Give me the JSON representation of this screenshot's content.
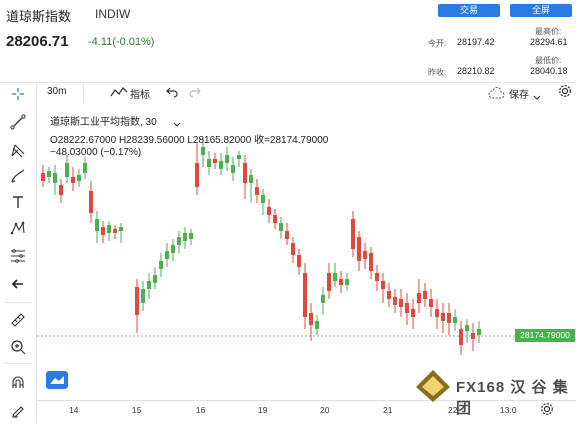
{
  "header": {
    "title": "道琼斯指数",
    "symbol": "INDIW",
    "trade_label": "交易",
    "fullscreen_label": "全屏",
    "price": "28206.71",
    "change": "-4.11(-0.01%)"
  },
  "stats": {
    "open_label": "今开:",
    "open": "28197.42",
    "prev_close_label": "昨收:",
    "prev_close": "28210.82",
    "high_label": "最高价:",
    "high": "28294.61",
    "low_label": "最低价:",
    "low": "28040.18"
  },
  "toolbar": {
    "interval": "30m",
    "indicators_label": "指标",
    "save_label": "保存"
  },
  "legend": {
    "title": "道琼斯工业平均指数, 30",
    "ohlc": "O28222.67000  H28239.56000  L28165.82000  收=28174.79000",
    "change": "−48.03000 (−0.17%)"
  },
  "price_tag": "28174.79000",
  "x_ticks": [
    "14",
    "15",
    "16",
    "19",
    "20",
    "21",
    "22",
    "13:0"
  ],
  "watermark": "FX168 汉 谷 集 团",
  "chart_data": {
    "type": "candlestick",
    "last": 28174.79,
    "x_tick_labels": [
      "14",
      "15",
      "16",
      "19",
      "20",
      "21",
      "22",
      "13:0"
    ],
    "colors": {
      "up": "#4caf50",
      "down": "#e04a3a"
    }
  }
}
